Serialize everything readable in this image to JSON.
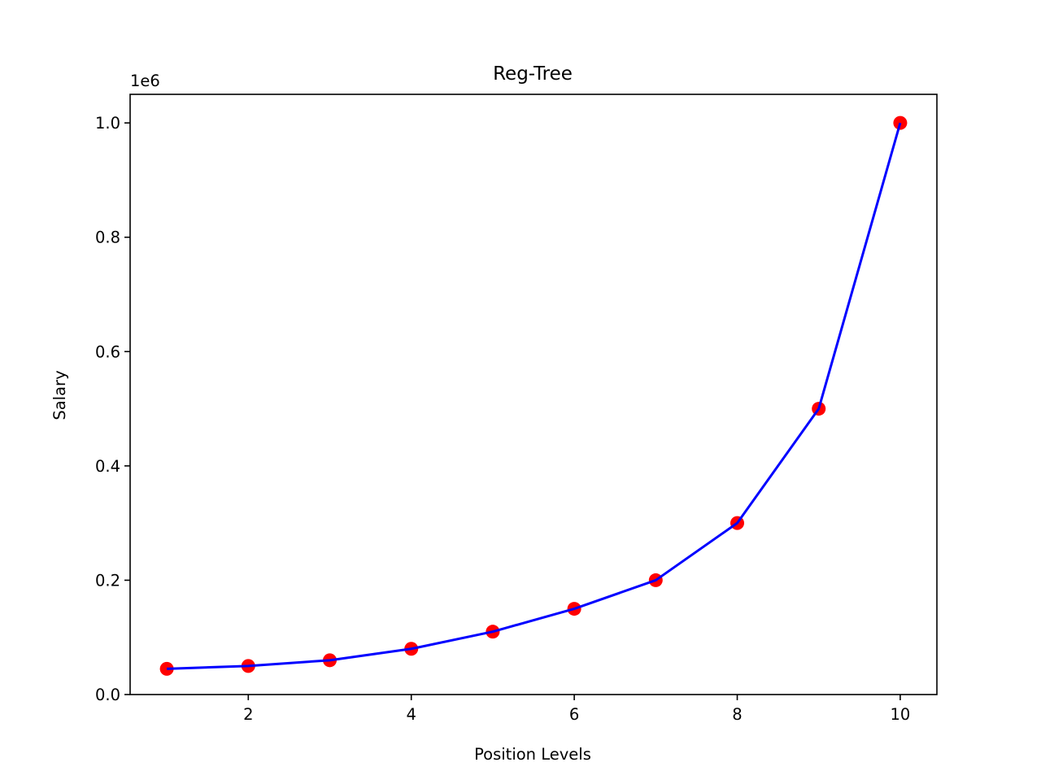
{
  "chart_data": {
    "type": "line",
    "title": "Reg-Tree",
    "xlabel": "Position Levels",
    "ylabel": "Salary",
    "y_offset_label": "1e6",
    "xlim": [
      0.55,
      10.45
    ],
    "ylim": [
      -0.0,
      1.05
    ],
    "xticks": [
      2,
      4,
      6,
      8,
      10
    ],
    "xtick_labels": [
      "2",
      "4",
      "6",
      "8",
      "10"
    ],
    "yticks": [
      0.0,
      0.2,
      0.4,
      0.6,
      0.8,
      1.0
    ],
    "ytick_labels": [
      "0.0",
      "0.2",
      "0.4",
      "0.6",
      "0.8",
      "1.0"
    ],
    "grid": false,
    "x": [
      1,
      2,
      3,
      4,
      5,
      6,
      7,
      8,
      9,
      10
    ],
    "series": [
      {
        "kind": "scatter",
        "color": "#ff0000",
        "values": [
          45000,
          50000,
          60000,
          80000,
          110000,
          150000,
          200000,
          300000,
          500000,
          1000000
        ]
      },
      {
        "kind": "line",
        "color": "#0000ff",
        "values": [
          45000,
          50000,
          60000,
          80000,
          110000,
          150000,
          200000,
          300000,
          500000,
          1000000
        ]
      }
    ]
  }
}
